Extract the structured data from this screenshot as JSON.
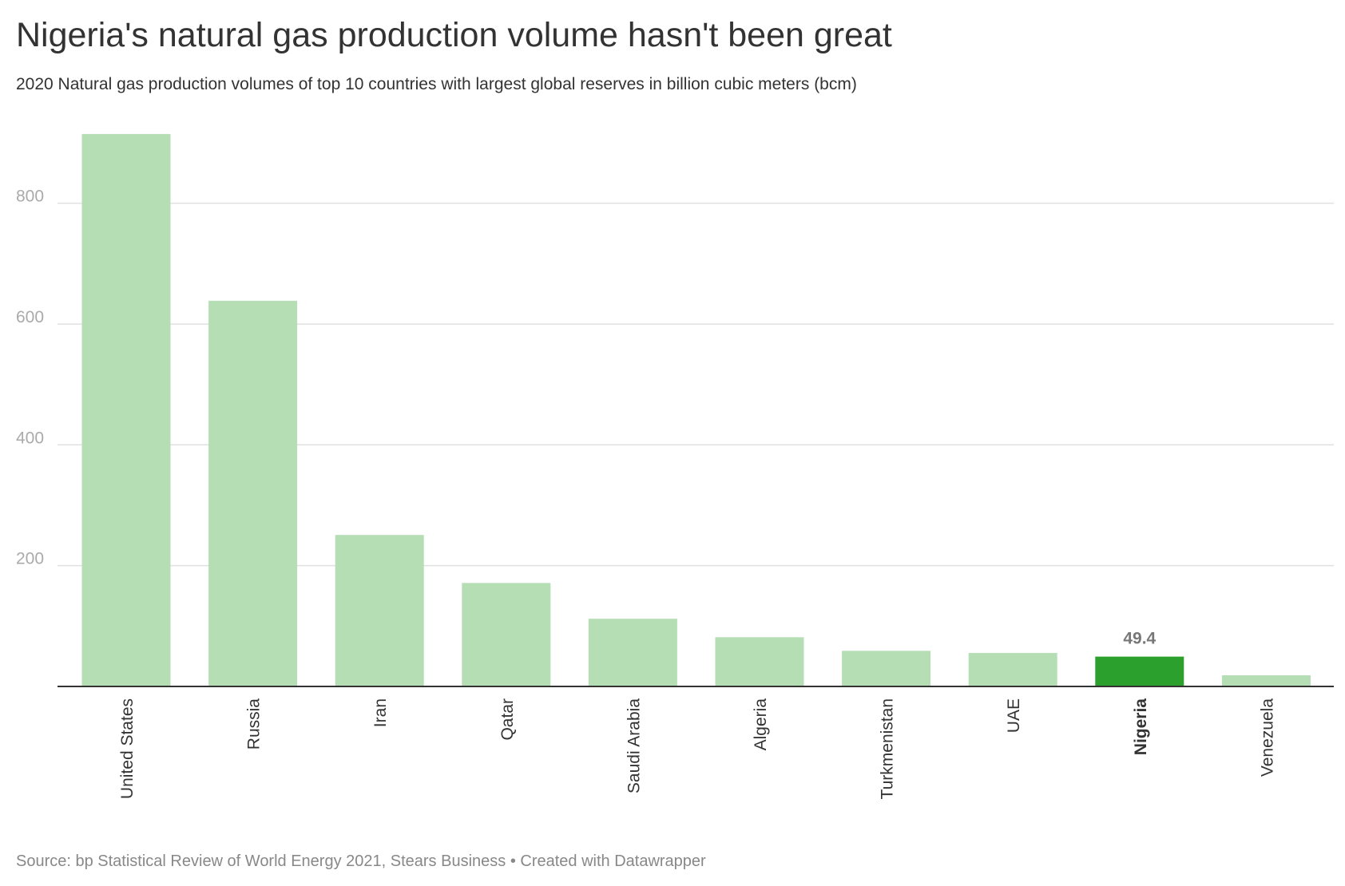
{
  "title": "Nigeria's natural gas production volume hasn't been great",
  "subtitle": "2020 Natural gas production volumes of top 10 countries with largest global reserves in billion cubic meters (bcm)",
  "source": "Source: bp Statistical Review of World Energy 2021, Stears Business • Created with Datawrapper",
  "colors": {
    "bar": "#b5deb5",
    "highlight": "#2ca02c",
    "grid": "#e0e0e0",
    "axis": "#333333"
  },
  "chart_data": {
    "type": "bar",
    "title": "Nigeria's natural gas production volume hasn't been great",
    "subtitle": "2020 Natural gas production volumes of top 10 countries with largest global reserves in billion cubic meters (bcm)",
    "xlabel": "",
    "ylabel": "",
    "categories": [
      "United States",
      "Russia",
      "Iran",
      "Qatar",
      "Saudi Arabia",
      "Algeria",
      "Turkmenistan",
      "UAE",
      "Nigeria",
      "Venezuela"
    ],
    "values": [
      914.6,
      638.5,
      250.8,
      171.3,
      112.1,
      81.5,
      59.0,
      55.4,
      49.4,
      18.5
    ],
    "highlight": "Nigeria",
    "value_labels": [
      {
        "category": "Nigeria",
        "text": "49.4"
      }
    ],
    "ylim": [
      0,
      925
    ],
    "yticks": [
      200,
      400,
      600,
      800
    ],
    "grid": true
  }
}
